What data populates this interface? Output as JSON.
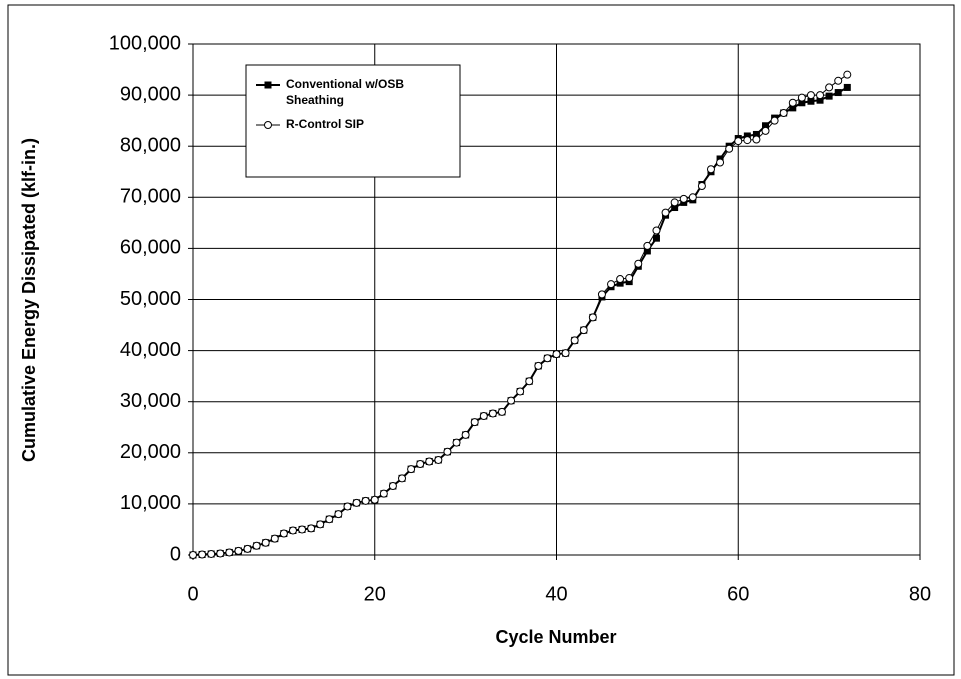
{
  "chart_data": {
    "type": "line",
    "xlabel": "Cycle Number",
    "ylabel": "Cumulative Energy  Dissipated (klf-in.)",
    "x": [
      0,
      1,
      2,
      3,
      4,
      5,
      6,
      7,
      8,
      9,
      10,
      11,
      12,
      13,
      14,
      15,
      16,
      17,
      18,
      19,
      20,
      21,
      22,
      23,
      24,
      25,
      26,
      27,
      28,
      29,
      30,
      31,
      32,
      33,
      34,
      35,
      36,
      37,
      38,
      39,
      40,
      41,
      42,
      43,
      44,
      45,
      46,
      47,
      48,
      49,
      50,
      51,
      52,
      53,
      54,
      55,
      56,
      57,
      58,
      59,
      60,
      61,
      62,
      63,
      64,
      65,
      66,
      67,
      68,
      69,
      70,
      71,
      72
    ],
    "series": [
      {
        "name": "Conventional w/OSB Sheathing",
        "color": "#000000",
        "marker": "square",
        "values": [
          0,
          100,
          200,
          300,
          500,
          800,
          1200,
          1800,
          2400,
          3200,
          4200,
          4800,
          5000,
          5200,
          6000,
          7000,
          8000,
          9500,
          10200,
          10600,
          10800,
          12000,
          13500,
          15000,
          16800,
          17800,
          18300,
          18600,
          20200,
          22000,
          23500,
          26000,
          27200,
          27700,
          28000,
          30200,
          32000,
          34000,
          37000,
          38500,
          39300,
          39500,
          42000,
          44000,
          46500,
          50500,
          52500,
          53200,
          53500,
          56500,
          59500,
          62000,
          66500,
          68000,
          69000,
          69500,
          72500,
          75000,
          77500,
          80000,
          81500,
          82000,
          82300,
          84000,
          85500,
          86500,
          87500,
          88500,
          88800,
          89000,
          89800,
          90500,
          91500
        ]
      },
      {
        "name": "R-Control SIP",
        "color": "#000000",
        "marker": "circle",
        "values": [
          0,
          100,
          200,
          300,
          500,
          800,
          1200,
          1800,
          2400,
          3200,
          4200,
          4800,
          5000,
          5200,
          6000,
          7000,
          8000,
          9500,
          10200,
          10600,
          10800,
          12000,
          13500,
          15000,
          16800,
          17800,
          18300,
          18600,
          20200,
          22000,
          23500,
          26000,
          27200,
          27700,
          28000,
          30200,
          32000,
          34000,
          37000,
          38500,
          39300,
          39500,
          42000,
          44000,
          46500,
          51000,
          53000,
          54000,
          54200,
          57000,
          60500,
          63500,
          67000,
          69000,
          69700,
          70000,
          72200,
          75500,
          76800,
          79500,
          81000,
          81200,
          81300,
          83000,
          85000,
          86500,
          88500,
          89500,
          90000,
          90000,
          91500,
          92800,
          94000
        ]
      }
    ],
    "xlim": [
      0,
      80
    ],
    "xticks": [
      0,
      20,
      40,
      60,
      80
    ],
    "ylim": [
      0,
      100000
    ],
    "yticks": [
      0,
      {
        "value": 10000,
        "label": "10,000"
      },
      {
        "value": 20000,
        "label": "20,000"
      },
      {
        "value": 30000,
        "label": "30,000"
      },
      {
        "value": 40000,
        "label": "40,000"
      },
      {
        "value": 50000,
        "label": "50,000"
      },
      {
        "value": 60000,
        "label": "60,000"
      },
      {
        "value": 70000,
        "label": "70,000"
      },
      {
        "value": 80000,
        "label": "80,000"
      },
      {
        "value": 90000,
        "label": "90,000"
      },
      {
        "value": 100000,
        "label": "100,000"
      }
    ],
    "grid": true,
    "legend": "upper left"
  }
}
